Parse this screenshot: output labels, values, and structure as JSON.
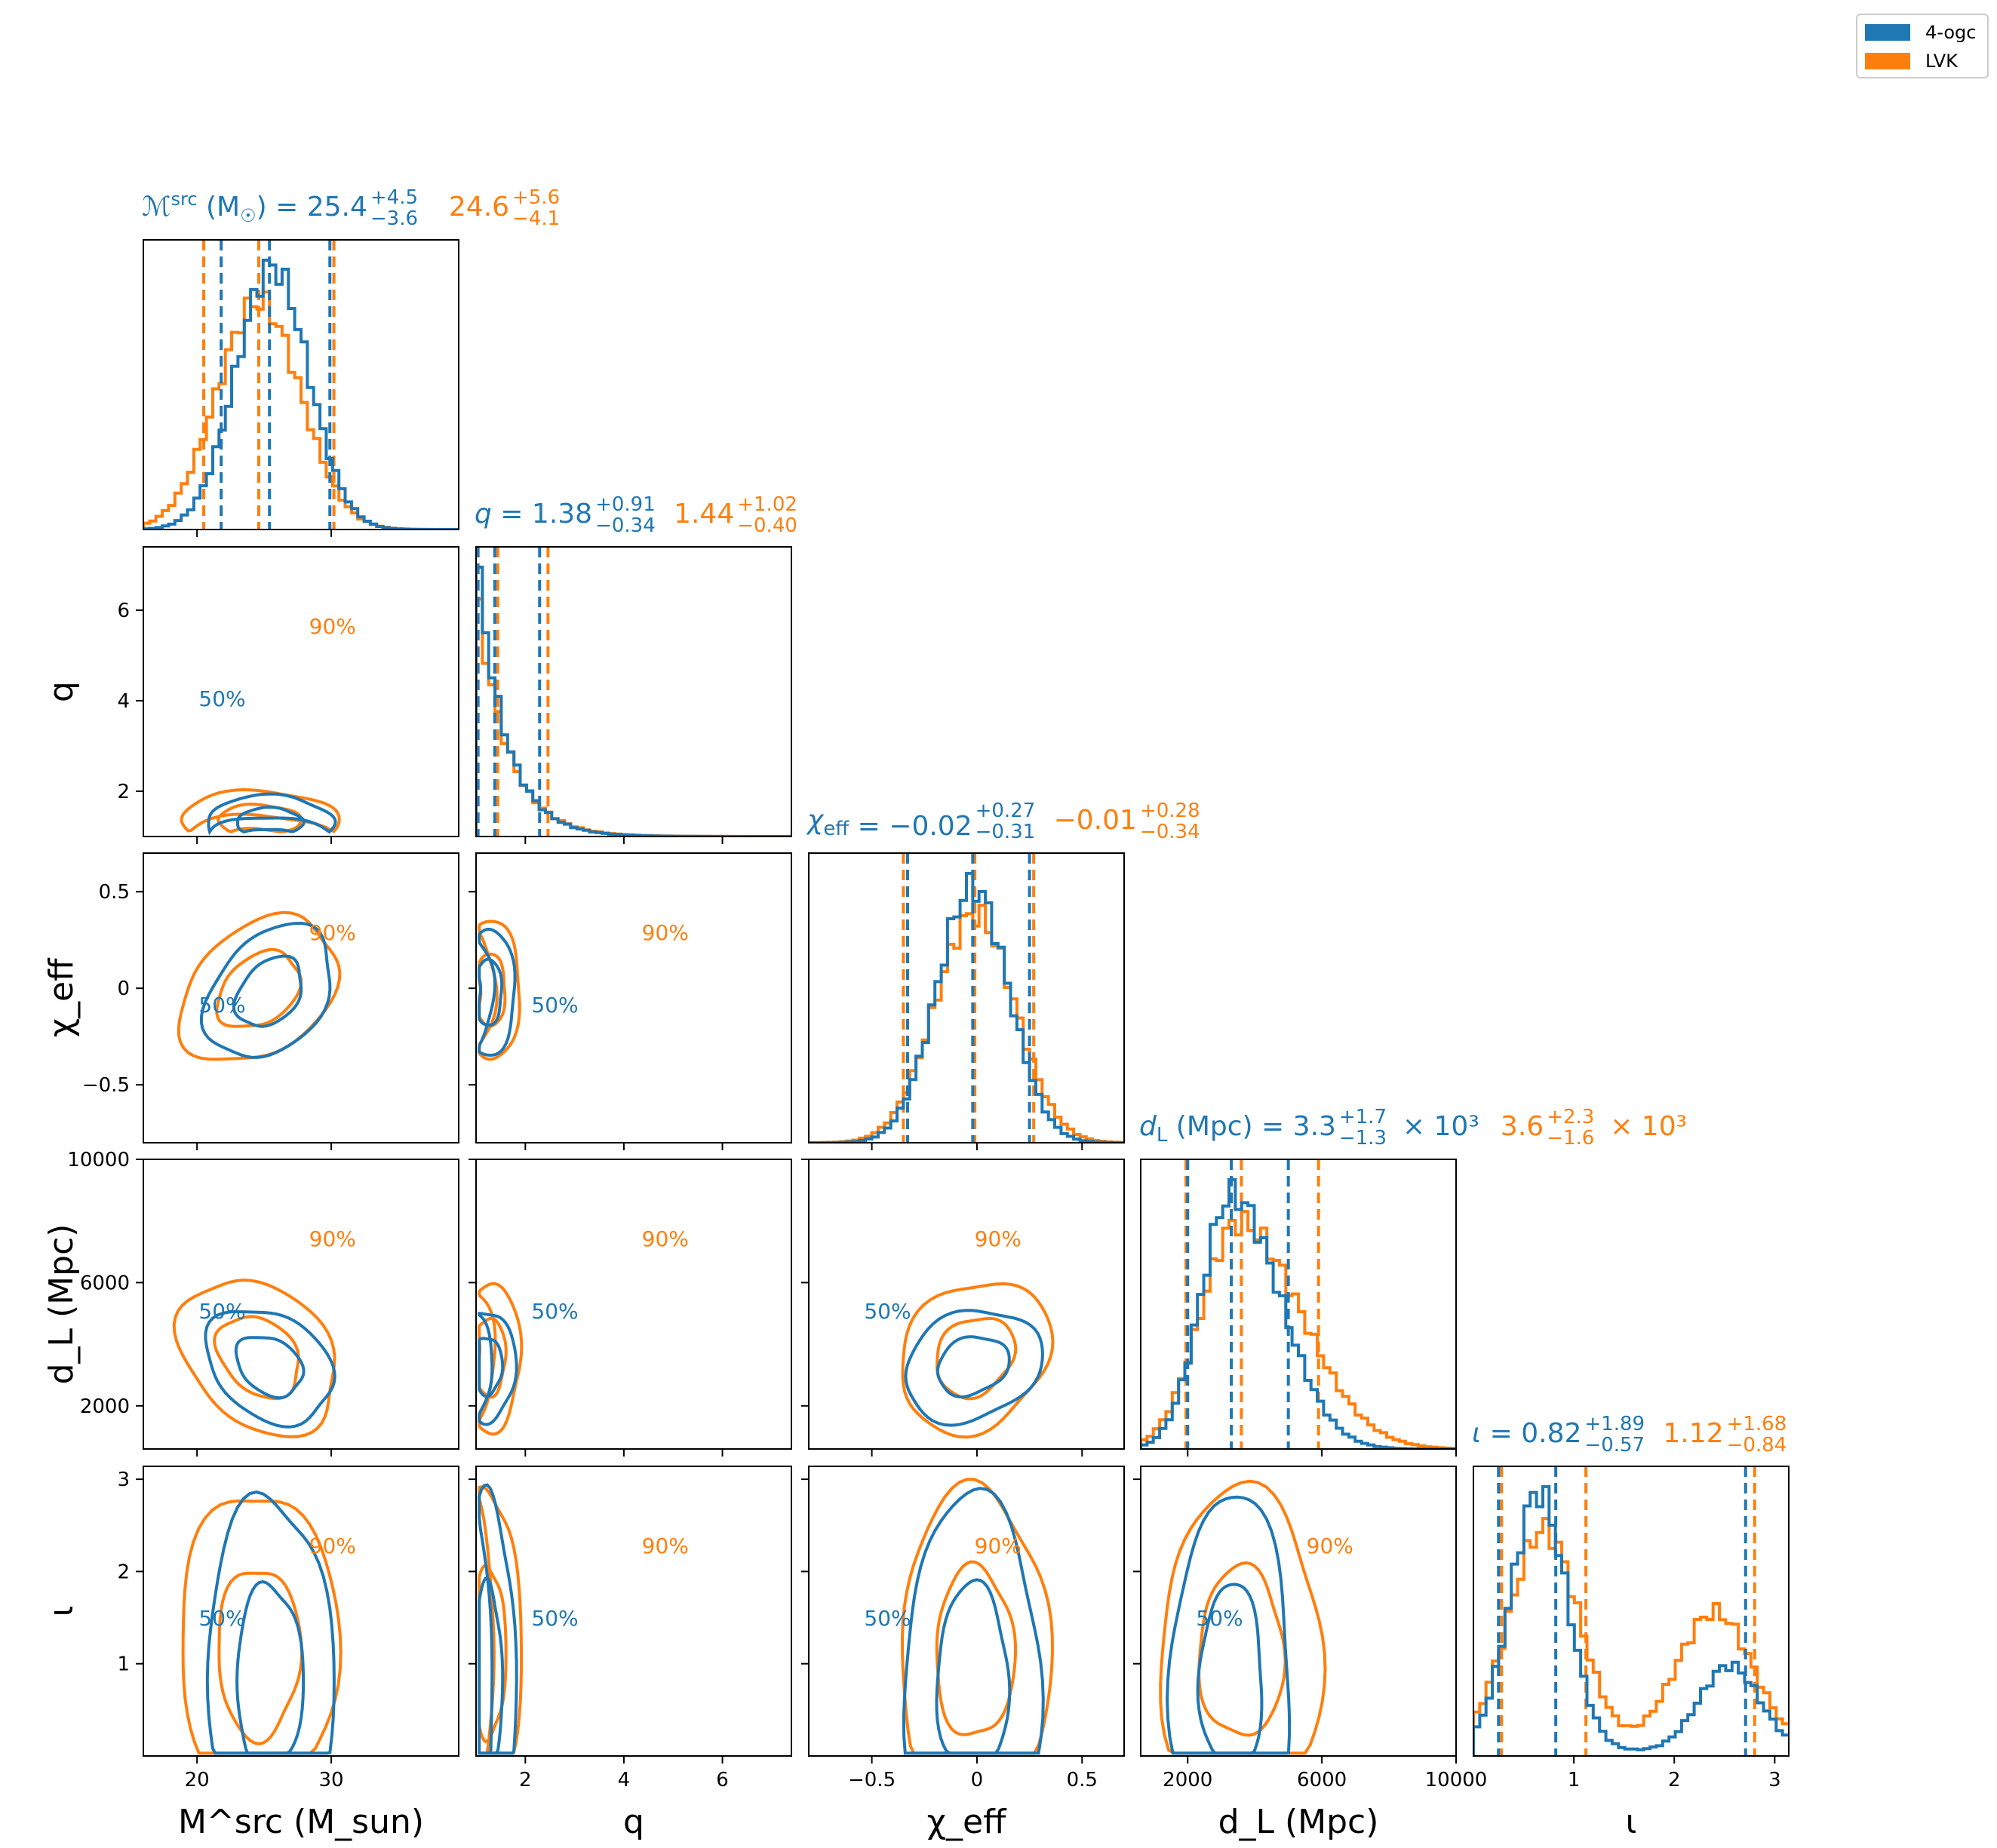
{
  "colors": {
    "ogc": "#1f77b4",
    "lvk": "#ff7f0e"
  },
  "legend": {
    "items": [
      {
        "label": "4-ogc",
        "color": "#1f77b4"
      },
      {
        "label": "LVK",
        "color": "#ff7f0e"
      }
    ]
  },
  "chart_data": {
    "type": "corner",
    "series": [
      {
        "name": "4-ogc"
      },
      {
        "name": "LVK"
      }
    ],
    "parameters": [
      {
        "key": "mc",
        "axis_label": "M^src (M_sun)",
        "range": [
          16,
          39.5
        ],
        "ticks": [
          20,
          30
        ],
        "title": {
          "symbol": "ℳ",
          "sup": "src",
          "unit": " (M",
          "unitsub": "☉",
          "unitend": ")",
          "ogc": {
            "value": "25.4",
            "plus": "+4.5",
            "minus": "−3.6"
          },
          "lvk": {
            "value": "24.6",
            "plus": "+5.6",
            "minus": "−4.1"
          }
        },
        "quantiles": {
          "ogc": [
            21.8,
            25.4,
            29.9
          ],
          "lvk": [
            20.5,
            24.6,
            30.2
          ]
        }
      },
      {
        "key": "q",
        "axis_label": "q",
        "range": [
          1.0,
          7.4
        ],
        "ticks": [
          2,
          4,
          6
        ],
        "title": {
          "symbol": "q",
          "ogc": {
            "value": "1.38",
            "plus": "+0.91",
            "minus": "−0.34"
          },
          "lvk": {
            "value": "1.44",
            "plus": "+1.02",
            "minus": "−0.40"
          }
        },
        "quantiles": {
          "ogc": [
            1.04,
            1.38,
            2.29
          ],
          "lvk": [
            1.04,
            1.44,
            2.46
          ]
        }
      },
      {
        "key": "chi",
        "axis_label": "χ_eff",
        "range": [
          -0.8,
          0.7
        ],
        "ticks": [
          -0.5,
          0.0,
          0.5
        ],
        "title": {
          "symbol": "χ",
          "sub": "eff",
          "ogc": {
            "value": "−0.02",
            "plus": "+0.27",
            "minus": "−0.31"
          },
          "lvk": {
            "value": "−0.01",
            "plus": "+0.28",
            "minus": "−0.34"
          }
        },
        "quantiles": {
          "ogc": [
            -0.33,
            -0.02,
            0.25
          ],
          "lvk": [
            -0.35,
            -0.01,
            0.27
          ]
        }
      },
      {
        "key": "dl",
        "axis_label": "d_L (Mpc)",
        "range": [
          600,
          10000
        ],
        "ticks": [
          2000,
          6000,
          10000
        ],
        "title": {
          "symbol": "d",
          "sub": "L",
          "unit": " (Mpc)",
          "times": "× 10³",
          "ogc": {
            "value": "3.3",
            "plus": "+1.7",
            "minus": "−1.3"
          },
          "lvk": {
            "value": "3.6",
            "plus": "+2.3",
            "minus": "−1.6"
          }
        },
        "quantiles": {
          "ogc": [
            2000,
            3300,
            5000
          ],
          "lvk": [
            1950,
            3600,
            5900
          ]
        }
      },
      {
        "key": "iota",
        "axis_label": "ι",
        "range": [
          0,
          3.14
        ],
        "ticks": [
          1,
          2,
          3
        ],
        "title": {
          "symbol": "ι",
          "ogc": {
            "value": "0.82",
            "plus": "+1.89",
            "minus": "−0.57"
          },
          "lvk": {
            "value": "1.12",
            "plus": "+1.68",
            "minus": "−0.84"
          }
        },
        "quantiles": {
          "ogc": [
            0.25,
            0.82,
            2.71
          ],
          "lvk": [
            0.28,
            1.12,
            2.8
          ]
        }
      }
    ],
    "histograms": {
      "mc": {
        "ogc": {
          "mu": 25.6,
          "sd": 2.7
        },
        "lvk": {
          "mu": 24.6,
          "sd": 3.1
        }
      },
      "q": {
        "ogc": {
          "decay": 0.58
        },
        "lvk": {
          "decay": 0.62
        }
      },
      "chi": {
        "ogc": {
          "mu": -0.02,
          "sd": 0.17
        },
        "lvk": {
          "mu": -0.01,
          "sd": 0.19
        }
      },
      "dl": {
        "ogc": {
          "mu": 3300,
          "sd": 900,
          "tail": 1.6
        },
        "lvk": {
          "mu": 3500,
          "sd": 1100,
          "tail": 1.7
        }
      },
      "iota": {
        "ogc": {
          "modes": [
            [
              0.65,
              0.28,
              1.0
            ],
            [
              2.55,
              0.3,
              0.33
            ]
          ]
        },
        "lvk": {
          "modes": [
            [
              0.7,
              0.35,
              0.72
            ],
            [
              2.4,
              0.38,
              0.45
            ]
          ]
        }
      }
    },
    "contour_labels": [
      "50%",
      "90%"
    ]
  }
}
